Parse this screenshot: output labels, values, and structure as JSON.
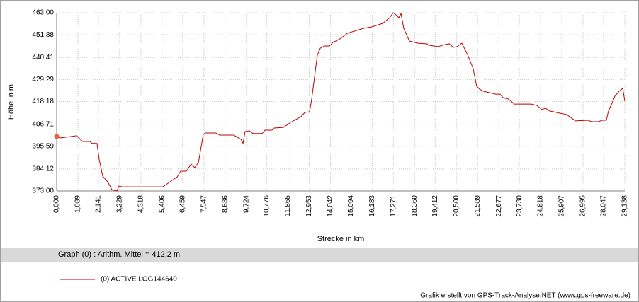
{
  "chart_data": {
    "type": "line",
    "ylabel": "Höhe  in  m",
    "xlabel": "Strecke  in  km",
    "summary": "Graph (0) :  Arithm. Mittel = 412,2 m",
    "credit": "Grafik erstellt von GPS-Track-Analyse.NET (www.gps-freeware.de)",
    "grid": true,
    "start_marker_color": "#e8603a",
    "xlim": [
      0,
      29.138
    ],
    "ylim": [
      373,
      463
    ],
    "yticks": [
      {
        "value": 373,
        "label": "373,00"
      },
      {
        "value": 384.12,
        "label": "384,12"
      },
      {
        "value": 395.59,
        "label": "395,59"
      },
      {
        "value": 406.71,
        "label": "406,71"
      },
      {
        "value": 418.18,
        "label": "418,18"
      },
      {
        "value": 429.29,
        "label": "429,29"
      },
      {
        "value": 440.41,
        "label": "440,41"
      },
      {
        "value": 451.88,
        "label": "451,88"
      },
      {
        "value": 463,
        "label": "463,00"
      }
    ],
    "xticks": [
      {
        "value": 0,
        "label": "0,000"
      },
      {
        "value": 1.089,
        "label": "1,089"
      },
      {
        "value": 2.141,
        "label": "2,141"
      },
      {
        "value": 3.229,
        "label": "3,229"
      },
      {
        "value": 4.318,
        "label": "4,318"
      },
      {
        "value": 5.406,
        "label": "5,406"
      },
      {
        "value": 6.459,
        "label": "6,459"
      },
      {
        "value": 7.547,
        "label": "7,547"
      },
      {
        "value": 8.636,
        "label": "8,636"
      },
      {
        "value": 9.724,
        "label": "9,724"
      },
      {
        "value": 10.776,
        "label": "10,776"
      },
      {
        "value": 11.865,
        "label": "11,865"
      },
      {
        "value": 12.953,
        "label": "12,953"
      },
      {
        "value": 14.042,
        "label": "14,042"
      },
      {
        "value": 15.094,
        "label": "15,094"
      },
      {
        "value": 16.183,
        "label": "16,183"
      },
      {
        "value": 17.271,
        "label": "17,271"
      },
      {
        "value": 18.36,
        "label": "18,360"
      },
      {
        "value": 19.412,
        "label": "19,412"
      },
      {
        "value": 20.5,
        "label": "20,500"
      },
      {
        "value": 21.589,
        "label": "21,589"
      },
      {
        "value": 22.677,
        "label": "22,677"
      },
      {
        "value": 23.73,
        "label": "23,730"
      },
      {
        "value": 24.818,
        "label": "24,818"
      },
      {
        "value": 25.907,
        "label": "25,907"
      },
      {
        "value": 26.995,
        "label": "26,995"
      },
      {
        "value": 28.047,
        "label": "28,047"
      },
      {
        "value": 29.138,
        "label": "29,138"
      }
    ],
    "x": [
      0,
      0.18,
      0.73,
      1.02,
      1.34,
      1.71,
      1.82,
      2.07,
      2.18,
      2.36,
      2.62,
      2.83,
      3.09,
      3.2,
      3.34,
      5.45,
      5.81,
      6.18,
      6.36,
      6.65,
      6.9,
      7.08,
      7.27,
      7.52,
      7.63,
      8.17,
      8.36,
      9.08,
      9.45,
      9.56,
      9.66,
      9.88,
      10.06,
      10.54,
      10.68,
      11.04,
      11.15,
      11.63,
      11.99,
      12.53,
      12.72,
      12.97,
      13.08,
      13.22,
      13.37,
      13.52,
      13.73,
      13.99,
      14.17,
      14.53,
      14.9,
      15.26,
      15.73,
      16.17,
      16.71,
      17.08,
      17.26,
      17.44,
      17.55,
      17.66,
      17.8,
      18.09,
      18.53,
      19.0,
      19.07,
      19.55,
      19.91,
      20.13,
      20.35,
      20.53,
      20.78,
      21.07,
      21.36,
      21.54,
      21.69,
      21.87,
      22.52,
      22.74,
      22.89,
      23.18,
      23.47,
      24.34,
      24.63,
      24.89,
      25.07,
      25.29,
      25.8,
      26.16,
      26.6,
      27.25,
      27.43,
      27.79,
      27.98,
      28.19,
      28.3,
      28.48,
      28.63,
      28.85,
      29.03,
      29.138
    ],
    "series": [
      {
        "name": "(0) ACTIVE LOG144640",
        "color": "#c00000",
        "values": [
          400.5,
          399.8,
          400.5,
          400.9,
          398,
          398,
          397,
          397,
          389,
          380.5,
          377.6,
          373.7,
          373,
          375.5,
          375.1,
          375.1,
          377.6,
          380.1,
          383,
          383,
          386.6,
          384.8,
          387.3,
          401.6,
          402.3,
          402.3,
          401.2,
          401.2,
          399.1,
          397,
          403,
          403.4,
          402,
          402,
          403.7,
          403.7,
          404.8,
          405.1,
          407.6,
          410.5,
          412.6,
          413,
          419.4,
          430.1,
          441.6,
          445.1,
          446.2,
          446.2,
          448,
          449.8,
          452.6,
          453.7,
          455.1,
          455.9,
          457.6,
          460.5,
          463,
          461.6,
          460.5,
          462.6,
          455.1,
          448.7,
          447.6,
          447.3,
          446.6,
          445.9,
          446.9,
          447.3,
          445.5,
          445.9,
          447.6,
          441.9,
          434.8,
          425.9,
          424.4,
          423.4,
          421.9,
          421.9,
          420.1,
          419.4,
          416.9,
          416.9,
          416.2,
          414.1,
          414.8,
          413.4,
          412.3,
          411.6,
          408.4,
          408.7,
          408,
          408,
          408.7,
          408.7,
          413.4,
          417.3,
          420.9,
          423.4,
          424.8,
          418.4
        ]
      }
    ]
  }
}
